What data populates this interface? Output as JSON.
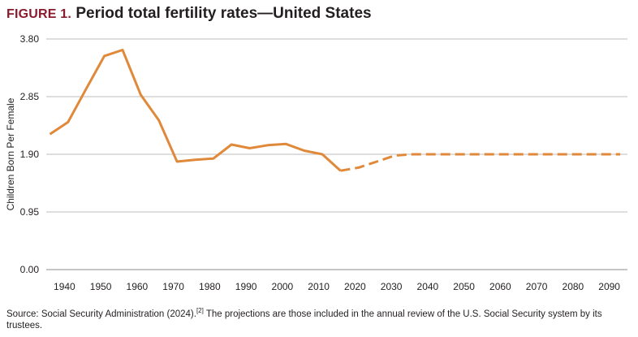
{
  "figure_label": "FIGURE 1.",
  "title": "Period total fertility rates—United States",
  "source_text_before": "Source: Social Security Administration (2024).",
  "source_ref": "[2]",
  "source_text_after": " The projections are those included in the annual review of the U.S. Social Security system by its trustees.",
  "colors": {
    "line": "#e0893a",
    "grid": "#bdbdbd",
    "axis": "#8c8c8c",
    "title_label": "#8a1b2e"
  },
  "chart_data": {
    "type": "line",
    "title": "Period total fertility rates—United States",
    "xlabel": "",
    "ylabel": "Children Born Per Female",
    "xlim": [
      1935,
      2095
    ],
    "ylim": [
      0,
      3.8
    ],
    "yticks": [
      0.0,
      0.95,
      1.9,
      2.85,
      3.8
    ],
    "ytick_labels": [
      "0.00",
      "0.95",
      "1.90",
      "2.85",
      "3.80"
    ],
    "xticks": [
      1940,
      1950,
      1960,
      1970,
      1980,
      1990,
      2000,
      2010,
      2020,
      2030,
      2040,
      2050,
      2060,
      2070,
      2080,
      2090
    ],
    "xtick_labels": [
      "1940",
      "1950",
      "1960",
      "1970",
      "1980",
      "1990",
      "2000",
      "2010",
      "2020",
      "2030",
      "2040",
      "2050",
      "2060",
      "2070",
      "2080",
      "2090"
    ],
    "grid": true,
    "series": [
      {
        "style": "solid",
        "x": [
          1936,
          1941,
          1946,
          1951,
          1956,
          1961,
          1966,
          1971,
          1976,
          1981,
          1986,
          1991,
          1996,
          2001,
          2006,
          2011,
          2016
        ],
        "y": [
          2.23,
          2.43,
          2.98,
          3.52,
          3.62,
          2.88,
          2.46,
          1.78,
          1.81,
          1.83,
          2.06,
          2.0,
          2.05,
          2.07,
          1.96,
          1.9,
          1.63
        ]
      },
      {
        "style": "dashed",
        "x": [
          2016,
          2021,
          2026,
          2031,
          2036,
          2093
        ],
        "y": [
          1.63,
          1.68,
          1.78,
          1.88,
          1.9,
          1.9
        ]
      }
    ]
  }
}
